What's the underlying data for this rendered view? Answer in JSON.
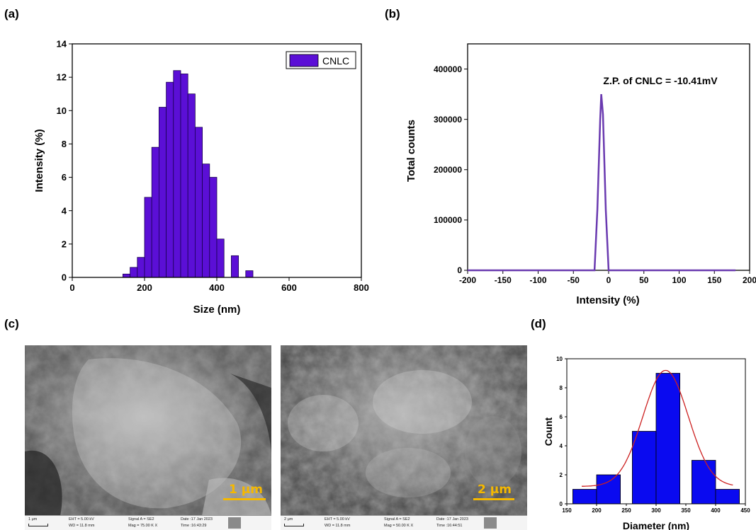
{
  "panels": {
    "a": "(a)",
    "b": "(b)",
    "c": "(c)",
    "d": "(d)"
  },
  "sem_images": [
    {
      "scale_text": "1 μm",
      "bar_text": "1 μm",
      "eht": "EHT = 5.00 kV",
      "wd": "WD = 11.8 mm",
      "signal": "Signal A = SE2",
      "mag": "Mag = 75.00 K X",
      "date": "Date :17 Jan 2023",
      "time": "Time :16:43:29"
    },
    {
      "scale_text": "2 μm",
      "bar_text": "2 μm",
      "eht": "EHT = 5.00 kV",
      "wd": "WD = 11.8 mm",
      "signal": "Signal A = SE2",
      "mag": "Mag = 50.00 K X",
      "date": "Date :17 Jan 2023",
      "time": "Time :16:44:51"
    }
  ],
  "chart_data": [
    {
      "panel": "a",
      "type": "bar",
      "xlabel": "Size (nm)",
      "ylabel": "Intensity (%)",
      "xlim": [
        0,
        800
      ],
      "ylim": [
        0,
        14
      ],
      "xticks": [
        0,
        200,
        400,
        600,
        800
      ],
      "yticks": [
        0,
        2,
        4,
        6,
        8,
        10,
        12,
        14
      ],
      "legend": {
        "label": "CNLC",
        "position": "top-right"
      },
      "color": "#5b0fd6",
      "series": [
        {
          "name": "CNLC",
          "bin_width": 20,
          "x": [
            150,
            170,
            190,
            210,
            230,
            250,
            270,
            290,
            310,
            330,
            350,
            370,
            390,
            410,
            430,
            450,
            470,
            490,
            510
          ],
          "values": [
            0.2,
            0.6,
            1.2,
            4.8,
            7.8,
            10.2,
            11.7,
            12.4,
            12.2,
            11.0,
            9.0,
            6.8,
            6.0,
            2.3,
            0.0,
            1.3,
            0.0,
            0.4,
            0.0
          ]
        }
      ]
    },
    {
      "panel": "b",
      "type": "line",
      "xlabel": "Intensity (%)",
      "ylabel": "Total counts",
      "xlim": [
        -200,
        200
      ],
      "ylim": [
        0,
        450000
      ],
      "xticks": [
        -200,
        -150,
        -100,
        -50,
        0,
        50,
        100,
        150,
        200
      ],
      "yticks": [
        0,
        100000,
        200000,
        300000,
        400000
      ],
      "annotation": "Z.P. of CNLC = -10.41mV",
      "color": "#6a3ab0",
      "series": [
        {
          "x": [
            -200,
            -20,
            -16,
            -12,
            -10.41,
            -8,
            -4,
            0,
            180
          ],
          "values": [
            0,
            0,
            120000,
            300000,
            350000,
            310000,
            120000,
            0,
            0
          ]
        }
      ]
    },
    {
      "panel": "d",
      "type": "bar",
      "xlabel": "Diameter (nm)",
      "ylabel": "Count",
      "xlim": [
        150,
        450
      ],
      "ylim": [
        0,
        10
      ],
      "xticks": [
        150,
        200,
        250,
        300,
        350,
        400,
        450
      ],
      "yticks": [
        0,
        2,
        4,
        6,
        8,
        10
      ],
      "color": "#0a0af0",
      "fit_color": "#cc2020",
      "series": [
        {
          "bin_width": 40,
          "x": [
            180,
            220,
            280,
            320,
            380,
            420
          ],
          "values": [
            1,
            2,
            5,
            9,
            3,
            1
          ]
        }
      ],
      "fit": {
        "type": "gaussian",
        "center": 316,
        "amplitude": 8.0,
        "sigma": 38,
        "baseline": 1.2,
        "x_range": [
          175,
          430
        ]
      }
    }
  ]
}
